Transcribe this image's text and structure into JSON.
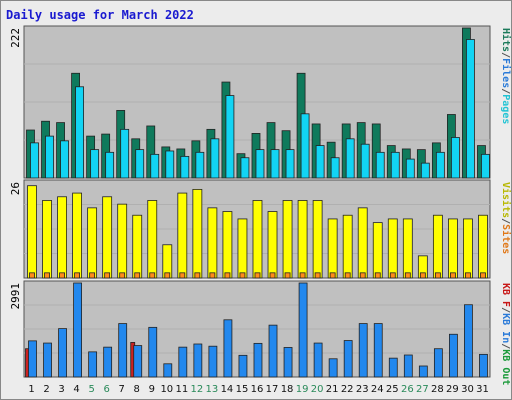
{
  "chart_data": {
    "type": "bar",
    "title": "Daily usage for March 2022",
    "categories": [
      "1",
      "2",
      "3",
      "4",
      "5",
      "6",
      "7",
      "8",
      "9",
      "10",
      "11",
      "12",
      "13",
      "14",
      "15",
      "16",
      "17",
      "18",
      "19",
      "20",
      "21",
      "22",
      "23",
      "24",
      "25",
      "26",
      "27",
      "28",
      "29",
      "30",
      "31"
    ],
    "weekend_color": "#2a8a5a",
    "weekday_color": "#111111",
    "weekend_days": [
      5,
      6,
      12,
      13,
      19,
      20,
      26,
      27
    ],
    "panels": [
      {
        "name": "hits-pages",
        "ymax_label": "222",
        "ymax": 222,
        "axis_labels": [
          {
            "text": "Hits",
            "color": "#1b7a5a"
          },
          {
            "text": "/",
            "color": "#555555"
          },
          {
            "text": "Files",
            "color": "#2a7ad8"
          },
          {
            "text": "/",
            "color": "#555555"
          },
          {
            "text": "Pages",
            "color": "#22c4d4"
          }
        ],
        "series": [
          {
            "name": "Hits",
            "color": "#0f7a5c",
            "values": [
              71,
              84,
              82,
              155,
              62,
              65,
              100,
              58,
              77,
              46,
              43,
              55,
              72,
              142,
              36,
              66,
              82,
              70,
              155,
              80,
              53,
              80,
              82,
              80,
              48,
              43,
              42,
              52,
              94,
              222,
              48
            ]
          },
          {
            "name": "Files",
            "color": "#30a8e0",
            "values": [
              0,
              0,
              0,
              0,
              0,
              0,
              0,
              0,
              0,
              0,
              0,
              0,
              0,
              0,
              0,
              0,
              0,
              0,
              0,
              0,
              0,
              0,
              0,
              0,
              0,
              0,
              0,
              0,
              0,
              0,
              0
            ]
          },
          {
            "name": "Pages",
            "color": "#12d4f4",
            "values": [
              52,
              62,
              55,
              135,
              42,
              38,
              72,
              42,
              35,
              40,
              32,
              38,
              58,
              122,
              30,
              42,
              42,
              42,
              95,
              48,
              30,
              58,
              50,
              38,
              38,
              28,
              22,
              38,
              60,
              205,
              35
            ]
          }
        ]
      },
      {
        "name": "visits-sites",
        "ymax_label": "26",
        "ymax": 26,
        "axis_labels": [
          {
            "text": "Visits",
            "color": "#b8b800"
          },
          {
            "text": "/",
            "color": "#555555"
          },
          {
            "text": "Sites",
            "color": "#e07818"
          }
        ],
        "series": [
          {
            "name": "Visits",
            "color": "#ffff00",
            "values": [
              25,
              21,
              22,
              23,
              19,
              22,
              20,
              17,
              21,
              9,
              23,
              24,
              19,
              18,
              16,
              21,
              18,
              21,
              21,
              21,
              16,
              17,
              19,
              15,
              16,
              16,
              6,
              17,
              16,
              16,
              17
            ]
          },
          {
            "name": "Sites",
            "color": "#ff8c1a",
            "values": [
              1.4,
              1.4,
              1.4,
              1.4,
              1.4,
              1.4,
              1.4,
              1.4,
              1.4,
              1.4,
              1.4,
              1.4,
              1.4,
              1.4,
              1.4,
              1.4,
              1.4,
              1.4,
              1.4,
              1.4,
              1.4,
              1.4,
              1.4,
              1.4,
              1.4,
              1.4,
              1.4,
              1.4,
              1.4,
              1.4,
              1.4
            ]
          }
        ]
      },
      {
        "name": "kbytes",
        "ymax_label": "2991",
        "ymax": 2991,
        "axis_labels": [
          {
            "text": "KB F",
            "color": "#c81818"
          },
          {
            "text": "/",
            "color": "#555555"
          },
          {
            "text": "KB In",
            "color": "#2a7ad8"
          },
          {
            "text": "/",
            "color": "#555555"
          },
          {
            "text": "KB Out",
            "color": "#1b9a3a"
          }
        ],
        "series": [
          {
            "name": "KB F",
            "color": "#cc2222",
            "values": [
              900,
              0,
              0,
              0,
              0,
              0,
              0,
              1100,
              0,
              0,
              0,
              0,
              0,
              0,
              0,
              0,
              0,
              0,
              0,
              0,
              0,
              0,
              0,
              0,
              0,
              0,
              0,
              0,
              0,
              0,
              0
            ]
          },
          {
            "name": "KB In",
            "color": "#2288ee",
            "values": [
              1150,
              1080,
              1540,
              2991,
              800,
              950,
              1700,
              1000,
              1580,
              420,
              950,
              1050,
              980,
              1820,
              690,
              1070,
              1650,
              940,
              2991,
              1080,
              580,
              1160,
              1700,
              1700,
              600,
              700,
              350,
              900,
              1360,
              2300,
              720
            ]
          },
          {
            "name": "KB Out",
            "color": "#1b9a3a",
            "values": [
              0,
              0,
              0,
              0,
              0,
              0,
              0,
              0,
              0,
              0,
              0,
              0,
              0,
              0,
              0,
              0,
              0,
              0,
              0,
              0,
              0,
              0,
              0,
              0,
              0,
              0,
              0,
              0,
              0,
              0,
              0
            ]
          }
        ]
      }
    ]
  }
}
